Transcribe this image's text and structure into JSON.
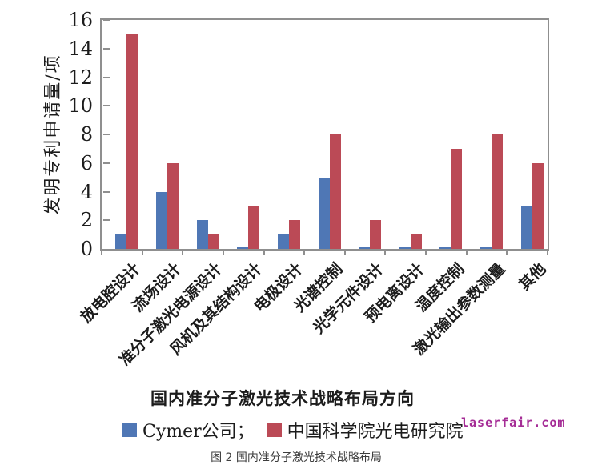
{
  "chart_data": {
    "type": "bar",
    "title": "",
    "xlabel": "国内准分子激光技术战略布局方向",
    "ylabel": "发明专利申请量/项",
    "ylim": [
      0,
      16
    ],
    "yticks": [
      0,
      2,
      4,
      6,
      8,
      10,
      12,
      14,
      16
    ],
    "grid": false,
    "legend_position": "bottom",
    "categories": [
      "放电腔设计",
      "流场设计",
      "准分子激光电源设计",
      "风机及其结构设计",
      "电极设计",
      "光谱控制",
      "光学元件设计",
      "预电离设计",
      "温度控制",
      "激光输出参数测量",
      "其他"
    ],
    "series": [
      {
        "name": "Cymer公司",
        "color": "#4F77B5",
        "values": [
          1,
          4,
          2,
          0,
          1,
          5,
          0,
          0,
          0,
          0,
          3
        ]
      },
      {
        "name": "中国科学院光电研究院",
        "color": "#BB4A56",
        "values": [
          15,
          6,
          1,
          3,
          2,
          8,
          2,
          1,
          7,
          8,
          6
        ]
      }
    ]
  },
  "legend": {
    "items": [
      {
        "label": "Cymer公司；",
        "color": "#4F77B5"
      },
      {
        "label": "中国科学院光电研究院",
        "color": "#BB4A56"
      }
    ]
  },
  "watermark": {
    "text": "laserfair.com",
    "color": "#A52C96"
  },
  "caption": "图 2 国内准分子激光技术战略布局"
}
